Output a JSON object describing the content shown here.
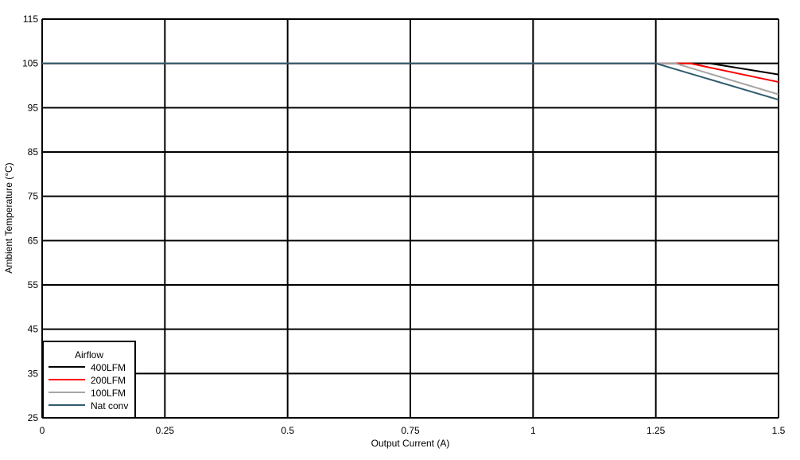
{
  "chart_data": {
    "type": "line",
    "title": "",
    "xlabel": "Output Current (A)",
    "ylabel": "Ambient Temperature (°C)",
    "xlim": [
      0,
      1.5
    ],
    "ylim": [
      25,
      115
    ],
    "x_ticks": [
      0,
      0.25,
      0.5,
      0.75,
      1,
      1.25,
      1.5
    ],
    "x_tick_labels": [
      "0",
      "0.25",
      "0.5",
      "0.75",
      "1",
      "1.25",
      "1.5"
    ],
    "y_ticks": [
      25,
      35,
      45,
      55,
      65,
      75,
      85,
      95,
      105,
      115
    ],
    "y_tick_labels": [
      "25",
      "35",
      "45",
      "55",
      "65",
      "75",
      "85",
      "95",
      "105",
      "115"
    ],
    "grid": true,
    "legend": {
      "title": "Airflow",
      "placement": "bottom-left"
    },
    "series": [
      {
        "name": "400LFM",
        "color": "#000000",
        "x": [
          0,
          1.36,
          1.5
        ],
        "y": [
          105,
          105,
          102.5
        ]
      },
      {
        "name": "200LFM",
        "color": "#ff0000",
        "x": [
          0,
          1.32,
          1.5
        ],
        "y": [
          105,
          105,
          100.8
        ]
      },
      {
        "name": "100LFM",
        "color": "#a6a6a6",
        "x": [
          0,
          1.29,
          1.5
        ],
        "y": [
          105,
          105,
          98
        ]
      },
      {
        "name": "Nat conv",
        "color": "#2f5b6e",
        "x": [
          0,
          1.25,
          1.5
        ],
        "y": [
          105,
          105,
          96.8
        ]
      }
    ]
  }
}
